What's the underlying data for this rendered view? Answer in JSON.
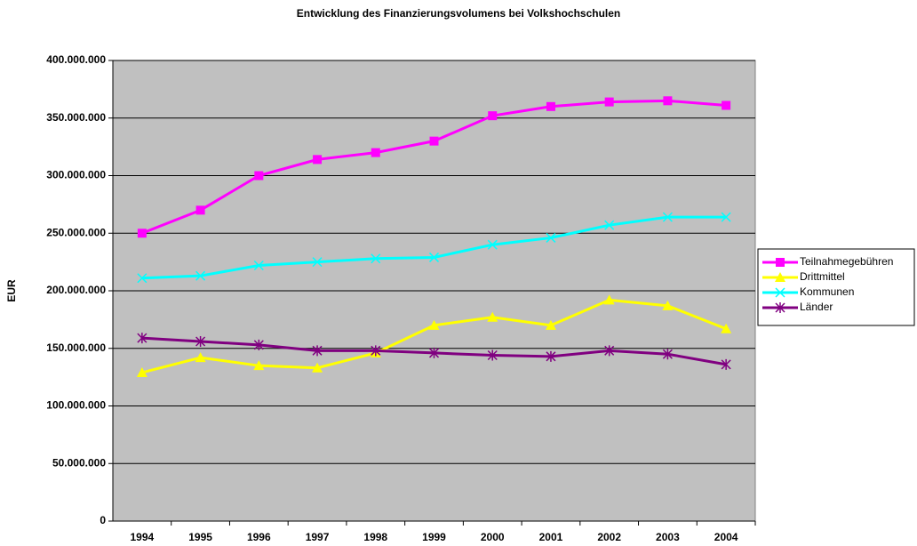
{
  "chart_data": {
    "type": "line",
    "title": "Entwicklung des Finanzierungsvolumens bei Volkshochschulen",
    "y_label": "EUR",
    "categories": [
      "1994",
      "1995",
      "1996",
      "1997",
      "1998",
      "1999",
      "2000",
      "2001",
      "2002",
      "2003",
      "2004"
    ],
    "series": [
      {
        "name": "Teilnahmegebühren",
        "color": "#ff00ff",
        "marker": "square",
        "values": [
          250000000,
          270000000,
          300000000,
          314000000,
          320000000,
          330000000,
          352000000,
          360000000,
          364000000,
          365000000,
          361000000
        ]
      },
      {
        "name": "Drittmittel",
        "color": "#ffff00",
        "marker": "triangle",
        "values": [
          129000000,
          142000000,
          135000000,
          133000000,
          146000000,
          170000000,
          177000000,
          170000000,
          192000000,
          187000000,
          167000000
        ]
      },
      {
        "name": "Kommunen",
        "color": "#00ffff",
        "marker": "x",
        "values": [
          211000000,
          213000000,
          222000000,
          225000000,
          228000000,
          229000000,
          240000000,
          246000000,
          257000000,
          264000000,
          264000000
        ]
      },
      {
        "name": "Länder",
        "color": "#800080",
        "marker": "asterisk",
        "values": [
          159000000,
          156000000,
          153000000,
          148000000,
          148000000,
          146000000,
          144000000,
          143000000,
          148000000,
          145000000,
          136000000
        ]
      }
    ],
    "ylim": [
      0,
      400000000
    ],
    "yticks": [
      0,
      {
        "value": 50000000,
        "label": "50.000.000"
      },
      {
        "value": 100000000,
        "label": "100.000.000"
      },
      {
        "value": 150000000,
        "label": "150.000.000"
      },
      {
        "value": 200000000,
        "label": "200.000.000"
      },
      {
        "value": 250000000,
        "label": "250.000.000"
      },
      {
        "value": 300000000,
        "label": "300.000.000"
      },
      {
        "value": 350000000,
        "label": "350.000.000"
      },
      {
        "value": 400000000,
        "label": "400.000.000"
      }
    ],
    "grid": true,
    "plot_background": "#c0c0c0",
    "legend": "right"
  }
}
